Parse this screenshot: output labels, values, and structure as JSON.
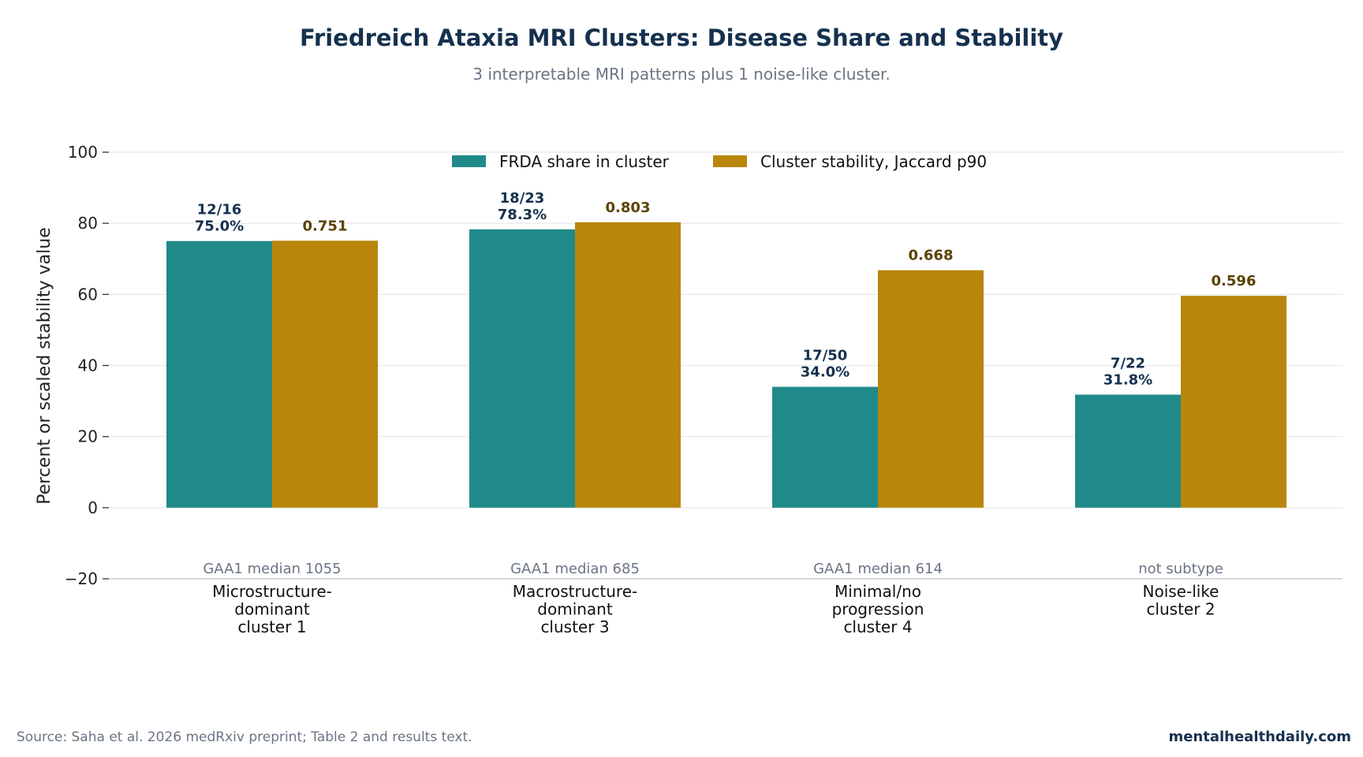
{
  "chart_data": {
    "type": "bar",
    "title": "Friedreich Ataxia MRI Clusters: Disease Share and Stability",
    "subtitle": "3 interpretable MRI patterns plus 1 noise-like cluster.",
    "ylabel": "Percent or scaled stability value",
    "xlabel": "",
    "ylim": [
      -20,
      100
    ],
    "yticks": [
      -20,
      0,
      20,
      40,
      60,
      80,
      100
    ],
    "ytick_labels": [
      "−20",
      "0",
      "20",
      "40",
      "60",
      "80",
      "100"
    ],
    "grid": "horizontal",
    "legend_position": "top-center",
    "categories": [
      [
        "Microstructure-",
        "dominant",
        "cluster 1"
      ],
      [
        "Macrostructure-",
        "dominant",
        "cluster 3"
      ],
      [
        "Minimal/no",
        "progression",
        "cluster 4"
      ],
      [
        "Noise-like",
        "cluster 2"
      ]
    ],
    "category_notes": [
      "GAA1 median 1055",
      "GAA1 median 685",
      "GAA1 median 614",
      "not subtype"
    ],
    "series": [
      {
        "name": "FRDA share in cluster",
        "color": "#1f8a89",
        "values": [
          75.0,
          78.3,
          34.0,
          31.8
        ],
        "labels": [
          [
            "12/16",
            "75.0%"
          ],
          [
            "18/23",
            "78.3%"
          ],
          [
            "17/50",
            "34.0%"
          ],
          [
            "7/22",
            "31.8%"
          ]
        ]
      },
      {
        "name": "Cluster stability, Jaccard p90",
        "color": "#b8860b",
        "values": [
          75.1,
          80.3,
          66.8,
          59.6
        ],
        "labels": [
          [
            "0.751"
          ],
          [
            "0.803"
          ],
          [
            "0.668"
          ],
          [
            "0.596"
          ]
        ]
      }
    ]
  },
  "footer": {
    "source": "Source: Saha et al. 2026 medRxiv preprint; Table 2 and results text.",
    "brand": "mentalhealthdaily.com"
  }
}
